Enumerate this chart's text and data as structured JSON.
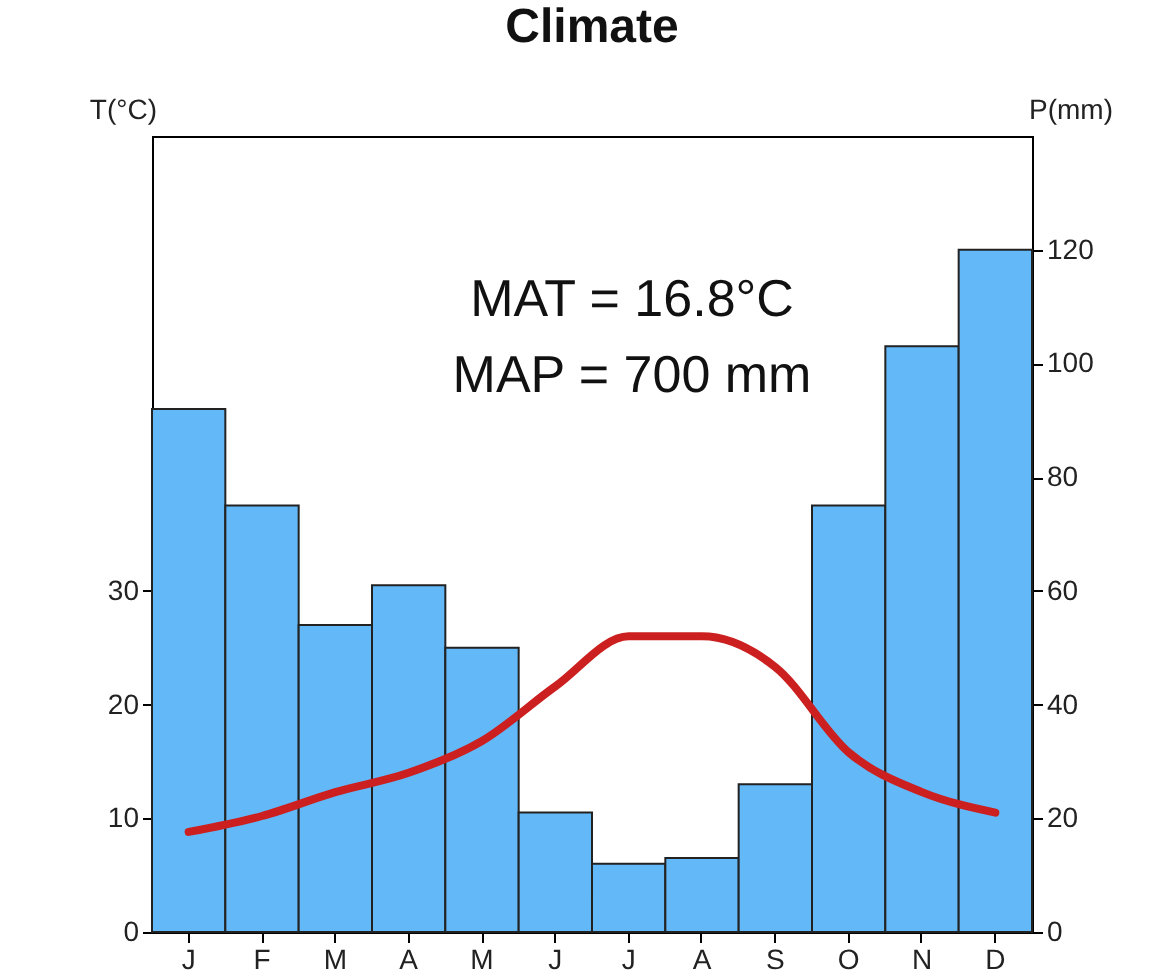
{
  "chart_data": {
    "type": "bar",
    "title": "Climate",
    "ylabel": "T(°C)",
    "y2label": "P(mm)",
    "categories": [
      "J",
      "F",
      "M",
      "A",
      "M",
      "J",
      "J",
      "A",
      "S",
      "O",
      "N",
      "D"
    ],
    "series": [
      {
        "axis": "y2",
        "color": "#63b8f8",
        "values": [
          92,
          75,
          54,
          61,
          50,
          21,
          12,
          13,
          26,
          75,
          103,
          120
        ]
      },
      {
        "type": "line",
        "axis": "y",
        "color": "#cc1f1f",
        "values": [
          8.8,
          10.2,
          12.3,
          14,
          16.8,
          21.6,
          26,
          26,
          23.3,
          15.8,
          12.3,
          10.5
        ]
      }
    ],
    "ylim": [
      0,
      70
    ],
    "yticks": [
      0,
      10,
      20,
      30
    ],
    "y2lim": [
      0,
      140
    ],
    "y2ticks": [
      0,
      20,
      40,
      60,
      80,
      100,
      120
    ],
    "annotations": [
      "MAT = 16.8°C",
      "MAP = 700 mm"
    ],
    "grid": false,
    "marker": "none",
    "line_style": "solid"
  }
}
